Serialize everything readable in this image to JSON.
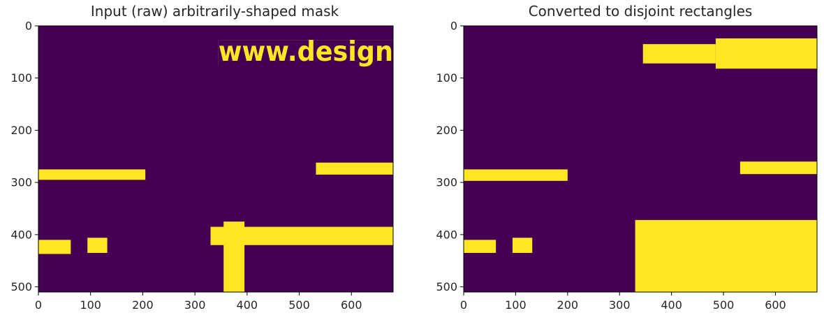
{
  "figure": {
    "background": "#ffffff",
    "colormap": "viridis",
    "colors": {
      "background": "#440154",
      "mask": "#fde725",
      "axis": "#000000",
      "text": "#262626"
    }
  },
  "chart_data": [
    {
      "type": "heatmap",
      "title": "Input (raw) arbitrarily-shaped mask",
      "xlabel": "",
      "ylabel": "",
      "xlim": [
        0,
        680
      ],
      "ylim": [
        510,
        0
      ],
      "xticks": [
        0,
        100,
        200,
        300,
        400,
        500,
        600
      ],
      "yticks": [
        0,
        100,
        200,
        300,
        400,
        500
      ],
      "grid": false,
      "values_legend": {
        "0": "background (purple)",
        "1": "mask (yellow)"
      },
      "text_in_mask": "www.design",
      "mask_regions": [
        {
          "name": "watermark-text",
          "x": [
            345,
            680
          ],
          "y": [
            27,
            77
          ]
        },
        {
          "name": "left-band",
          "x": [
            0,
            205
          ],
          "y": [
            275,
            295
          ]
        },
        {
          "name": "right-band",
          "x": [
            532,
            680
          ],
          "y": [
            262,
            285
          ]
        },
        {
          "name": "small-blob-left",
          "x": [
            0,
            62
          ],
          "y": [
            410,
            437
          ]
        },
        {
          "name": "small-blob-mid",
          "x": [
            94,
            132
          ],
          "y": [
            406,
            435
          ]
        },
        {
          "name": "horizontal-stroke",
          "x": [
            330,
            680
          ],
          "y": [
            385,
            420
          ]
        },
        {
          "name": "vertical-stroke",
          "x": [
            355,
            395
          ],
          "y": [
            375,
            510
          ]
        }
      ]
    },
    {
      "type": "heatmap",
      "title": "Converted to disjoint rectangles",
      "xlabel": "",
      "ylabel": "",
      "xlim": [
        0,
        680
      ],
      "ylim": [
        510,
        0
      ],
      "xticks": [
        0,
        100,
        200,
        300,
        400,
        500,
        600
      ],
      "yticks": [
        0,
        100,
        200,
        300,
        400,
        500
      ],
      "grid": false,
      "values_legend": {
        "0": "background (purple)",
        "1": "mask (yellow)"
      },
      "rectangles": [
        {
          "x": [
            345,
            485
          ],
          "y": [
            35,
            72
          ]
        },
        {
          "x": [
            485,
            680
          ],
          "y": [
            24,
            82
          ]
        },
        {
          "x": [
            0,
            200
          ],
          "y": [
            275,
            297
          ]
        },
        {
          "x": [
            532,
            680
          ],
          "y": [
            260,
            284
          ]
        },
        {
          "x": [
            0,
            62
          ],
          "y": [
            410,
            435
          ]
        },
        {
          "x": [
            94,
            132
          ],
          "y": [
            406,
            435
          ]
        },
        {
          "x": [
            330,
            680
          ],
          "y": [
            372,
            510
          ]
        }
      ]
    }
  ]
}
